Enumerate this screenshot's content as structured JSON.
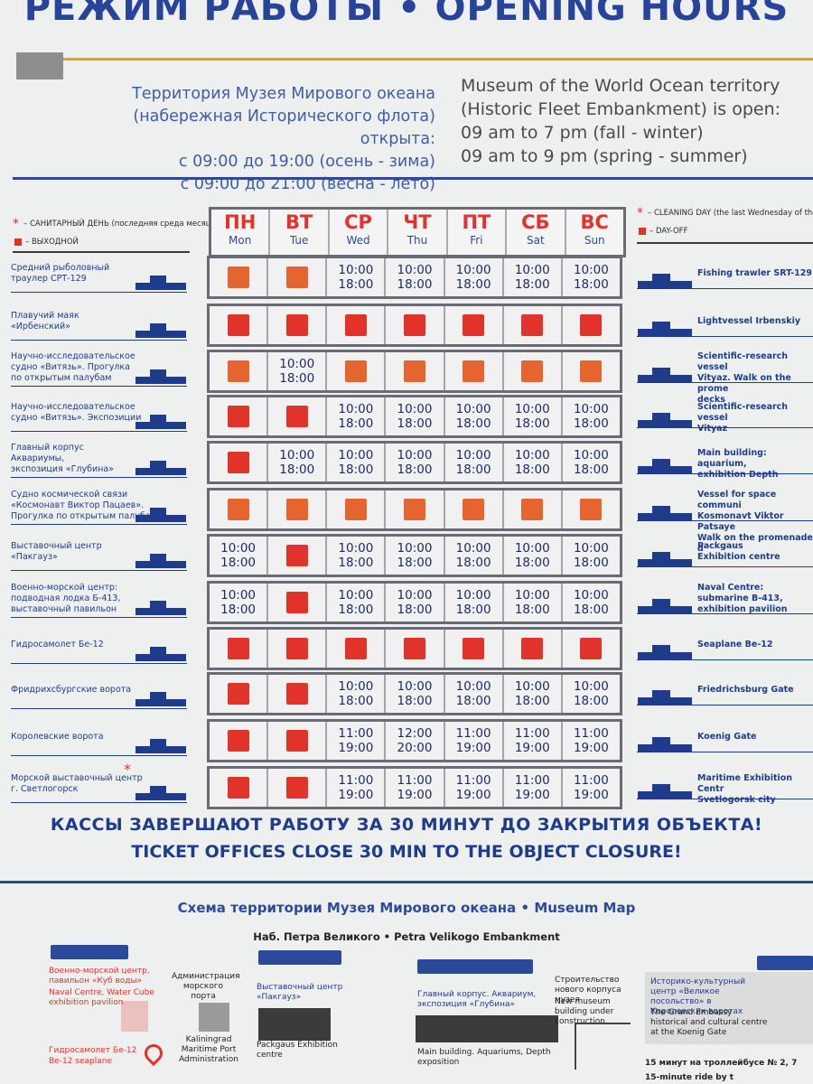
{
  "header": {
    "title": "РЕЖИМ РАБОТЫ • OPENING HOURS"
  },
  "intro": {
    "ru": [
      "Территория Музея Мирового океана",
      "(набережная Исторического флота) открыта:",
      "с 09:00 до 19:00 (осень - зима)",
      "с 09:00 до 21:00 (весна - лето)"
    ],
    "en": [
      "Museum of the World Ocean territory",
      "(Historic Fleet Embankment) is open:",
      "09 am to 7 pm (fall - winter)",
      "09 am to 9 pm (spring - summer)"
    ]
  },
  "legend_ru": {
    "cleaning": "– САНИТАРНЫЙ ДЕНЬ (последняя среда месяца)",
    "dayoff": "– ВЫХОДНОЙ"
  },
  "legend_en": {
    "cleaning": "– CLEANING DAY (the last Wednesday of the m",
    "dayoff": "– DAY-OFF"
  },
  "days": [
    {
      "ru": "ПН",
      "en": "Mon"
    },
    {
      "ru": "ВТ",
      "en": "Tue"
    },
    {
      "ru": "СР",
      "en": "Wed"
    },
    {
      "ru": "ЧТ",
      "en": "Thu"
    },
    {
      "ru": "ПТ",
      "en": "Fri"
    },
    {
      "ru": "СБ",
      "en": "Sat"
    },
    {
      "ru": "ВС",
      "en": "Sun"
    }
  ],
  "rows": [
    {
      "ru": [
        "Средний рыболовный",
        "траулер СРТ-129"
      ],
      "en": [
        "Fishing trawler SRT-129"
      ],
      "cells": [
        "off-o",
        "off-o",
        "10:00|18:00",
        "10:00|18:00",
        "10:00|18:00",
        "10:00|18:00",
        "10:00|18:00"
      ]
    },
    {
      "ru": [
        "Плавучий маяк",
        "«Ирбенский»"
      ],
      "en": [
        "Lightvessel Irbenskiy"
      ],
      "cells": [
        "off",
        "off",
        "off",
        "off",
        "off",
        "off",
        "off"
      ]
    },
    {
      "ru": [
        "Научно-исследовательское",
        "судно «Витязь». Прогулка",
        "по открытым палубам"
      ],
      "en": [
        "Scientific-research vessel",
        "Vityaz. Walk on the prome",
        "decks"
      ],
      "cells": [
        "off-o",
        "10:00|18:00",
        "off-o",
        "off-o",
        "off-o",
        "off-o",
        "off-o"
      ]
    },
    {
      "ru": [
        "Научно-исследовательское",
        "судно «Витязь». Экспозиции"
      ],
      "en": [
        "Scientific-research vessel",
        "Vityaz"
      ],
      "cells": [
        "off",
        "off",
        "10:00|18:00",
        "10:00|18:00",
        "10:00|18:00",
        "10:00|18:00",
        "10:00|18:00"
      ]
    },
    {
      "ru": [
        "Главный корпус",
        "Аквариумы,",
        "экспозиция «Глубина»"
      ],
      "en": [
        "Main building: aquarium,",
        "exhibition Depth"
      ],
      "cells": [
        "off",
        "10:00|18:00",
        "10:00|18:00",
        "10:00|18:00",
        "10:00|18:00",
        "10:00|18:00",
        "10:00|18:00"
      ]
    },
    {
      "ru": [
        "Судно космической связи",
        "«Космонавт Виктор Пацаев».",
        "Прогулка по открытым палубам"
      ],
      "en": [
        "Vessel for space communi",
        "Kosmonavt Viktor Patsaye",
        "Walk on the promenade d"
      ],
      "cells": [
        "off-o",
        "off-o",
        "off-o",
        "off-o",
        "off-o",
        "off-o",
        "off-o"
      ]
    },
    {
      "ru": [
        "Выставочный центр",
        "«Пакгауз»"
      ],
      "en": [
        "Packgaus",
        "Exhibition centre"
      ],
      "cells": [
        "10:00|18:00",
        "off",
        "10:00|18:00",
        "10:00|18:00",
        "10:00|18:00",
        "10:00|18:00",
        "10:00|18:00"
      ]
    },
    {
      "ru": [
        "Военно-морской центр:",
        "подводная лодка Б-413,",
        "выставочный павильон"
      ],
      "en": [
        "Naval Centre:",
        "submarine B-413,",
        "exhibition pavilion"
      ],
      "cells": [
        "10:00|18:00",
        "off",
        "10:00|18:00",
        "10:00|18:00",
        "10:00|18:00",
        "10:00|18:00",
        "10:00|18:00"
      ]
    },
    {
      "ru": [
        "Гидросамолет Бе-12"
      ],
      "en": [
        "Seaplane Be-12"
      ],
      "cells": [
        "off",
        "off",
        "off",
        "off",
        "off",
        "off",
        "off"
      ]
    },
    {
      "ru": [
        "Фридрихсбургские ворота"
      ],
      "en": [
        "Friedrichsburg Gate"
      ],
      "cells": [
        "off",
        "off",
        "10:00|18:00",
        "10:00|18:00",
        "10:00|18:00",
        "10:00|18:00",
        "10:00|18:00"
      ]
    },
    {
      "ru": [
        "Королевские ворота"
      ],
      "en": [
        "Koenig Gate"
      ],
      "cells": [
        "off",
        "off",
        "11:00|19:00",
        "12:00|20:00",
        "11:00|19:00",
        "11:00|19:00",
        "11:00|19:00"
      ]
    },
    {
      "ru": [
        "Морской выставочный центр",
        "г. Светлогорск"
      ],
      "en": [
        "Maritime Exhibition Centr",
        "Svetlogorsk city"
      ],
      "cells": [
        "off",
        "off",
        "11:00|19:00",
        "11:00|19:00",
        "11:00|19:00",
        "11:00|19:00",
        "11:00|19:00"
      ]
    }
  ],
  "closing": {
    "ru": "КАССЫ ЗАВЕРШАЮТ РАБОТУ ЗА 30 МИНУТ ДО ЗАКРЫТИЯ ОБЪЕКТА!",
    "en_1": "TICKET OFFICES CLOSE 30 MIN TO THE OBJECT CLOSURE!"
  },
  "map": {
    "title": "Схема территории Музея Мирового океана • Museum Map",
    "subtitle": "Наб. Петра Великого • Petra Velikogo Embankment",
    "items": {
      "naval_ru": "Военно-морской центр, павильон «Куб воды»",
      "naval_en": "Naval Centre, Water Cube exhibition pavilion",
      "seaplane_ru": "Гидросамолет Бе-12",
      "seaplane_en": "Be-12 seaplane",
      "admin_ru": "Администрация морского порта",
      "admin_en": "Kaliningrad Maritime Port Administration",
      "pack_ru": "Выставочный центр «Пакгауз»",
      "pack_en": "Packgaus Exhibition centre",
      "main_ru": "Главный корпус. Аквариум, экспозиция «Глубина»",
      "main_en": "Main building. Aquariums, Depth exposition",
      "new_ru": "Строительство нового корпуса музея",
      "new_en": "New museum building under construction",
      "embassy_ru": "Историко-культурный центр «Великое посольство» в Королевских воротах",
      "embassy_en": "The Grand Embassy historical and cultural centre at the Koenig Gate",
      "bus_ru": "15 минут на троллейбусе № 2, 7",
      "bus_en": "15-minute ride by t"
    }
  },
  "colors": {
    "accent_blue": "#27449a",
    "red": "#e2332b",
    "orange": "#e6642f",
    "gold": "#c9a35a"
  }
}
